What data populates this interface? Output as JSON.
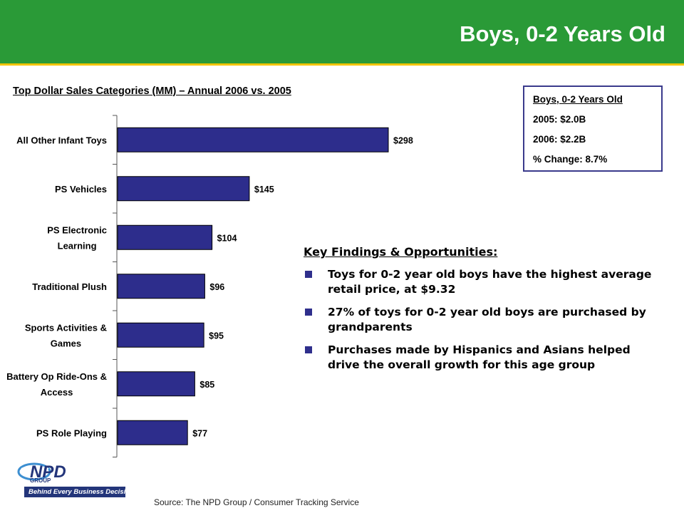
{
  "header": {
    "title": "Boys, 0-2 Years Old"
  },
  "chart_data": {
    "type": "bar",
    "orientation": "horizontal",
    "title": "Top Dollar Sales Categories (MM) – Annual 2006 vs. 2005",
    "categories": [
      "All Other Infant Toys",
      "PS Vehicles",
      "PS Electronic Learning",
      "Traditional Plush",
      "Sports Activities & Games",
      "Battery Op Ride-Ons & Access",
      "PS Role Playing"
    ],
    "category_lines": [
      [
        "All Other Infant Toys"
      ],
      [
        "PS Vehicles"
      ],
      [
        "PS Electronic",
        "Learning"
      ],
      [
        "Traditional Plush"
      ],
      [
        "Sports Activities &",
        "Games"
      ],
      [
        "Battery Op Ride-Ons &",
        "Access"
      ],
      [
        "PS Role Playing"
      ]
    ],
    "values": [
      298,
      145,
      104,
      96,
      95,
      85,
      77
    ],
    "data_labels": [
      "$298",
      "$145",
      "$104",
      "$96",
      "$95",
      "$85",
      "$77"
    ],
    "xlim": [
      0,
      298
    ],
    "bar_color": "#2d2d8c",
    "legend": "none",
    "grid": false
  },
  "summary": {
    "heading": "Boys, 0-2 Years Old",
    "rows": [
      "2005: $2.0B",
      "2006: $2.2B",
      "% Change: 8.7%"
    ]
  },
  "findings": {
    "heading": "Key Findings & Opportunities:",
    "items": [
      "Toys for 0-2 year old boys have the highest average retail price, at $9.32",
      "27% of toys for 0-2 year old boys are purchased by grandparents",
      "Purchases made by Hispanics and Asians helped drive the overall growth for this age group"
    ]
  },
  "logo": {
    "text": "NPD",
    "group": "GROUP",
    "tagline": "Behind Every Business Decision"
  },
  "source": "Source:  The NPD Group / Consumer Tracking Service",
  "colors": {
    "header_green": "#2a9a37",
    "header_accent": "#f2c400",
    "bar": "#2d2d8c",
    "box_border": "#3a3a8c"
  }
}
